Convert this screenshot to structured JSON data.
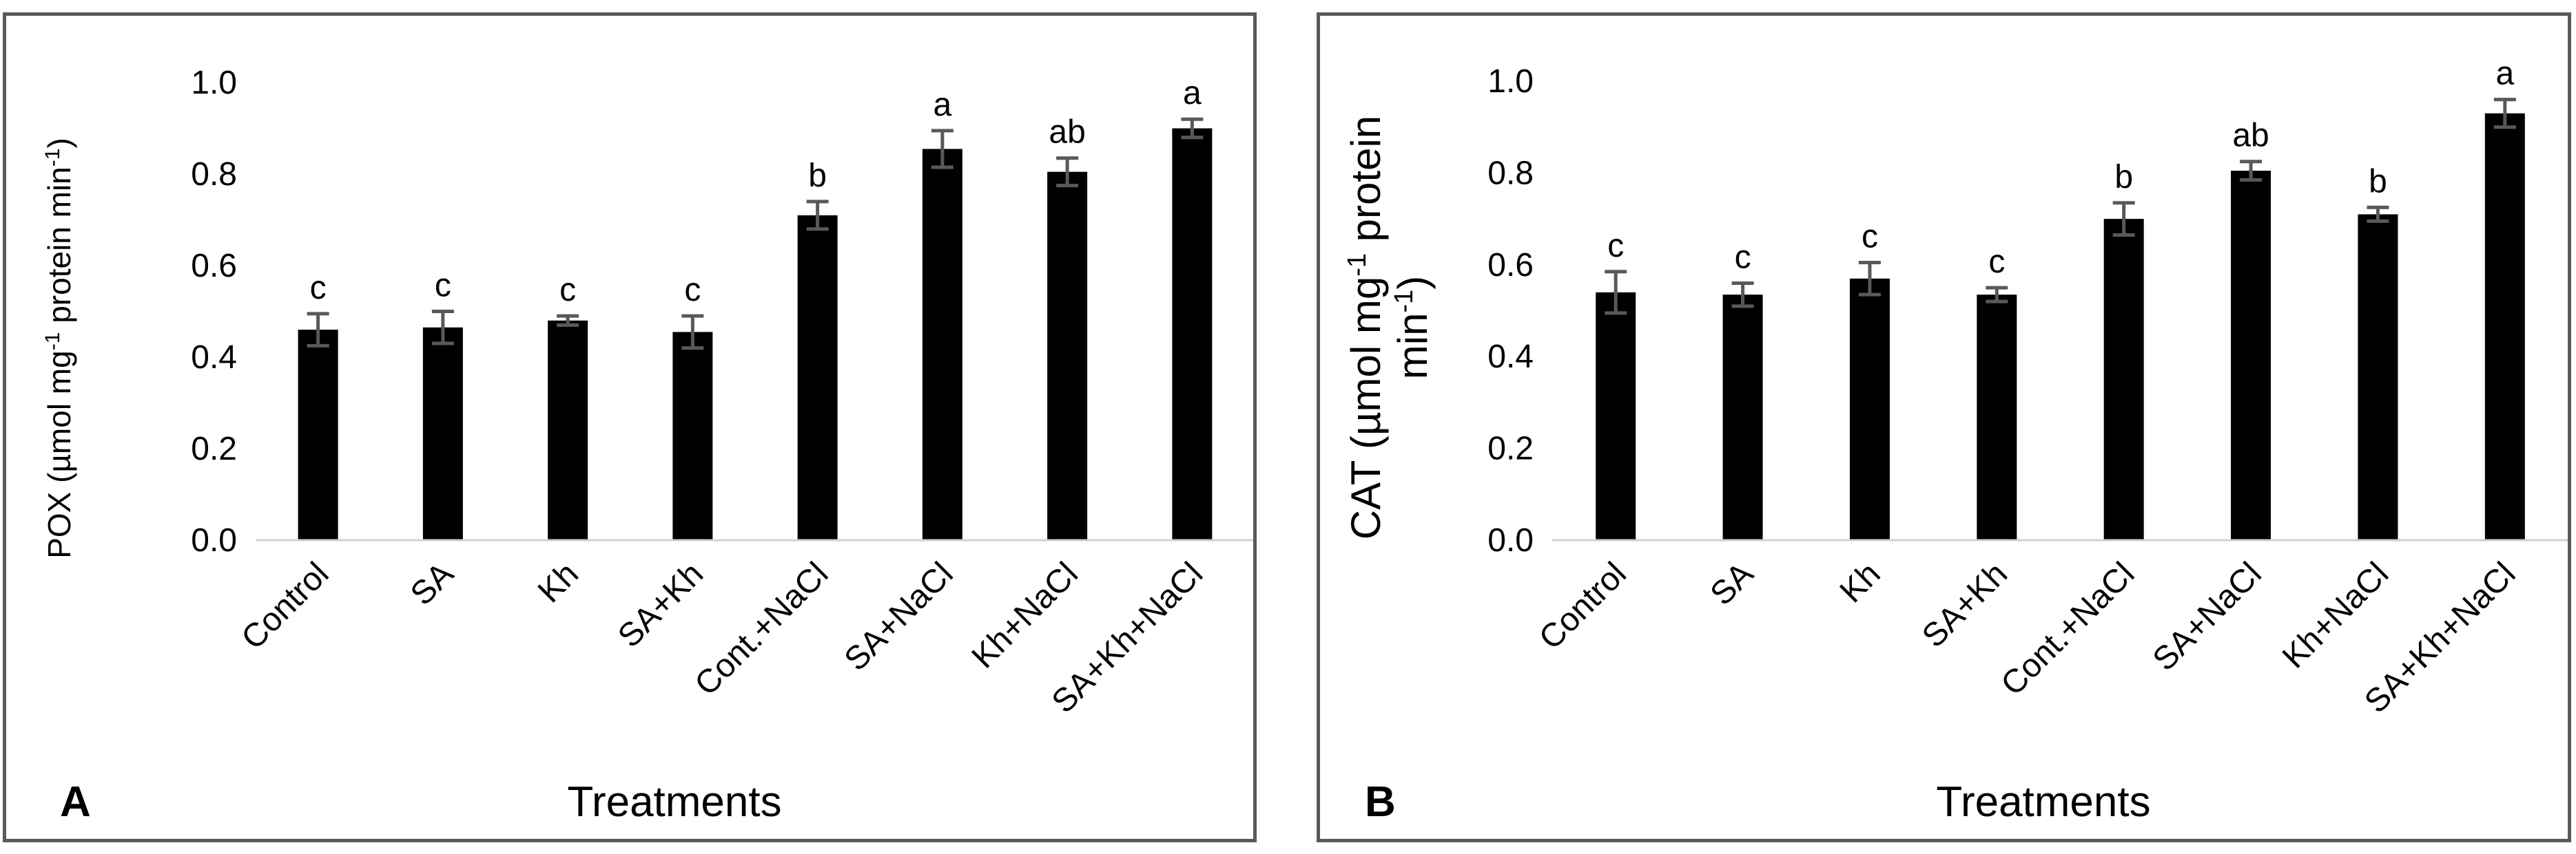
{
  "chart_data": [
    {
      "panel_letter": "A",
      "type": "bar",
      "categories": [
        "Control",
        "SA",
        "Kh",
        "SA+Kh",
        "Cont.+NaCl",
        "SA+NaCl",
        "Kh+NaCl",
        "SA+Kh+NaCl"
      ],
      "values": [
        0.46,
        0.465,
        0.48,
        0.455,
        0.71,
        0.855,
        0.805,
        0.9
      ],
      "errors": [
        0.035,
        0.035,
        0.01,
        0.035,
        0.03,
        0.04,
        0.03,
        0.02
      ],
      "significance": [
        "c",
        "c",
        "c",
        "c",
        "b",
        "a",
        "ab",
        "a"
      ],
      "yticks": [
        "0.0",
        "0.2",
        "0.4",
        "0.6",
        "0.8",
        "1.0"
      ],
      "ylim": [
        0,
        1.0
      ],
      "ylabel": {
        "part1": "POX (µmol mg",
        "sup1": "-1",
        "part2": " protein min",
        "sup2": "-1",
        "part3": ")"
      },
      "xlabel": "Treatments",
      "bar_color": "#000000",
      "error_color": "#595959"
    },
    {
      "panel_letter": "B",
      "type": "bar",
      "categories": [
        "Control",
        "SA",
        "Kh",
        "SA+Kh",
        "Cont.+NaCl",
        "SA+NaCl",
        "Kh+NaCl",
        "SA+Kh+NaCl"
      ],
      "values": [
        0.54,
        0.535,
        0.57,
        0.535,
        0.7,
        0.805,
        0.71,
        0.93
      ],
      "errors": [
        0.045,
        0.025,
        0.035,
        0.015,
        0.035,
        0.02,
        0.015,
        0.03
      ],
      "significance": [
        "c",
        "c",
        "c",
        "c",
        "b",
        "ab",
        "b",
        "a"
      ],
      "yticks": [
        "0.0",
        "0.2",
        "0.4",
        "0.6",
        "0.8",
        "1.0"
      ],
      "ylim": [
        0,
        1.0
      ],
      "ylabel": {
        "line1_part1": "CAT (µmol mg",
        "line1_sup": "-1",
        "line1_part2": " protein",
        "line2_part1": "min",
        "line2_sup": "-1",
        "line2_part2": ")"
      },
      "xlabel": "Treatments",
      "bar_color": "#000000",
      "error_color": "#595959"
    }
  ]
}
